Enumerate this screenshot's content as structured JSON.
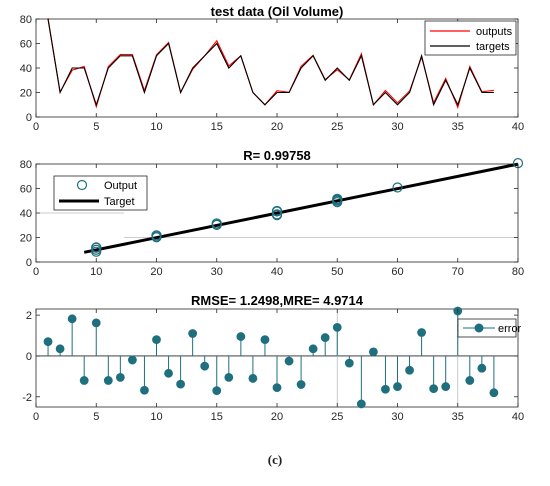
{
  "caption": "(c)",
  "chart_data": [
    {
      "type": "line",
      "title": "test data (Oil Volume)",
      "xlabel": "",
      "ylabel": "",
      "xlim": [
        0,
        40
      ],
      "ylim": [
        0,
        80
      ],
      "xticks": [
        0,
        5,
        10,
        15,
        20,
        25,
        30,
        35,
        40
      ],
      "yticks": [
        0,
        20,
        40,
        60,
        80
      ],
      "grid": false,
      "legend_position": "top-right",
      "x": [
        1,
        2,
        3,
        4,
        5,
        6,
        7,
        8,
        9,
        10,
        11,
        12,
        13,
        14,
        15,
        16,
        17,
        18,
        19,
        20,
        21,
        22,
        23,
        24,
        25,
        26,
        27,
        28,
        29,
        30,
        31,
        32,
        33,
        34,
        35,
        36,
        37,
        38
      ],
      "series": [
        {
          "name": "outputs",
          "color": "#ff0000",
          "values": [
            80.7,
            20.4,
            38.2,
            41.2,
            8.4,
            41.2,
            51.0,
            51.0,
            21.6,
            50.8,
            60.8,
            20.2,
            38.9,
            50.0,
            62.2,
            41.7,
            50.0,
            20.0,
            10.0,
            21.5,
            20.2,
            41.4,
            50.4,
            30.5,
            38.6,
            30.3,
            51.6,
            10.0,
            21.6,
            11.5,
            21.2,
            48.9,
            11.6,
            31.5,
            7.8,
            41.2,
            20.6,
            21.8
          ]
        },
        {
          "name": "targets",
          "color": "#000000",
          "values": [
            80,
            20,
            40,
            40,
            10,
            40,
            50,
            50,
            20,
            50,
            60,
            20,
            40,
            50,
            60,
            40,
            50,
            20,
            10,
            20,
            20,
            40,
            50,
            30,
            40,
            30,
            50,
            10,
            20,
            10,
            20,
            50,
            10,
            30,
            10,
            40,
            20,
            20
          ]
        }
      ]
    },
    {
      "type": "scatter",
      "title": "R= 0.99758",
      "xlabel": "",
      "ylabel": "",
      "xlim": [
        0,
        80
      ],
      "ylim": [
        0,
        80
      ],
      "xticks": [
        0,
        10,
        20,
        30,
        40,
        50,
        60,
        70,
        80
      ],
      "yticks": [
        0,
        20,
        40,
        60,
        80
      ],
      "grid": false,
      "legend_position": "top-left",
      "series": [
        {
          "name": "Output",
          "color": "#1f6f7f",
          "points": [
            [
              10,
              8.4
            ],
            [
              10,
              10
            ],
            [
              10,
              11.6
            ],
            [
              10,
              12
            ],
            [
              20,
              20.2
            ],
            [
              20,
              20.4
            ],
            [
              20,
              21.5
            ],
            [
              20,
              21.6
            ],
            [
              20,
              21.8
            ],
            [
              30,
              30.3
            ],
            [
              30,
              30.5
            ],
            [
              30,
              31.5
            ],
            [
              40,
              38.2
            ],
            [
              40,
              38.6
            ],
            [
              40,
              38.9
            ],
            [
              40,
              41.2
            ],
            [
              40,
              41.7
            ],
            [
              50,
              48.9
            ],
            [
              50,
              50.0
            ],
            [
              50,
              50.8
            ],
            [
              50,
              51.6
            ],
            [
              60,
              60.8
            ],
            [
              80,
              80.7
            ]
          ]
        },
        {
          "name": "Target",
          "color": "#000000",
          "line": [
            [
              8,
              7.9
            ],
            [
              80,
              79.9
            ]
          ]
        }
      ]
    },
    {
      "type": "stem",
      "title": "RMSE= 1.2498,MRE= 4.9714",
      "xlabel": "",
      "ylabel": "",
      "xlim": [
        0,
        40
      ],
      "ylim": [
        -2.5,
        2.3
      ],
      "xticks": [
        0,
        5,
        10,
        15,
        20,
        25,
        30,
        35,
        40
      ],
      "yticks": [
        -2,
        0,
        2
      ],
      "grid": false,
      "legend_position": "top-right",
      "series": [
        {
          "name": "error",
          "color": "#1f6f7f",
          "x": [
            1,
            2,
            3,
            4,
            5,
            6,
            7,
            8,
            9,
            10,
            11,
            12,
            13,
            14,
            15,
            16,
            17,
            18,
            19,
            20,
            21,
            22,
            23,
            24,
            25,
            26,
            27,
            28,
            29,
            30,
            31,
            32,
            33,
            34,
            35,
            36,
            37,
            38
          ],
          "values": [
            0.7,
            0.35,
            1.82,
            -1.2,
            1.62,
            -1.2,
            -1.05,
            -0.2,
            -1.68,
            0.8,
            -0.85,
            -1.38,
            1.1,
            -0.5,
            -1.7,
            -1.05,
            0.95,
            -1.1,
            0.8,
            -1.55,
            -0.25,
            -1.4,
            0.35,
            0.9,
            1.4,
            -0.35,
            -2.35,
            0.2,
            -1.63,
            -1.5,
            -0.7,
            1.15,
            -1.6,
            -1.5,
            2.2,
            -1.2,
            -0.6,
            -1.8
          ]
        }
      ]
    }
  ]
}
